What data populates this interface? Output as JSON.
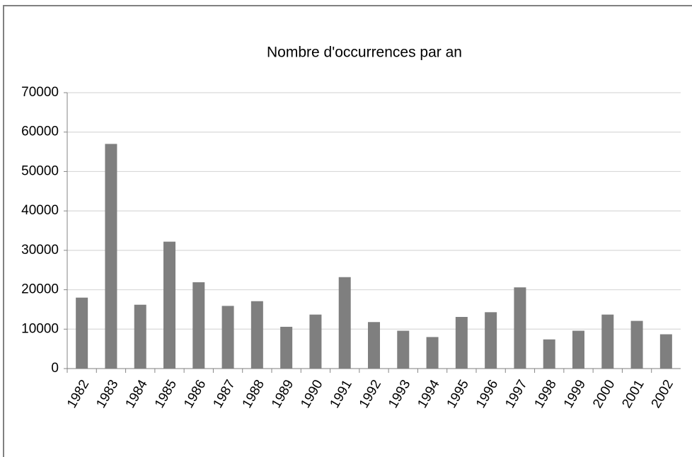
{
  "chart_data": {
    "type": "bar",
    "title": "Nombre d'occurrences par an",
    "categories": [
      "1982",
      "1983",
      "1984",
      "1985",
      "1986",
      "1987",
      "1988",
      "1989",
      "1990",
      "1991",
      "1992",
      "1993",
      "1994",
      "1995",
      "1996",
      "1997",
      "1998",
      "1999",
      "2000",
      "2001",
      "2002"
    ],
    "values": [
      18000,
      57000,
      16200,
      32200,
      21900,
      15900,
      17100,
      10600,
      13700,
      23200,
      11800,
      9600,
      8000,
      13100,
      14300,
      20600,
      7400,
      9600,
      13700,
      12100,
      8700
    ],
    "color": "#7f7f7f",
    "ylim": [
      0,
      70000
    ],
    "yticks": [
      0,
      10000,
      20000,
      30000,
      40000,
      50000,
      60000,
      70000
    ],
    "grid": true
  }
}
